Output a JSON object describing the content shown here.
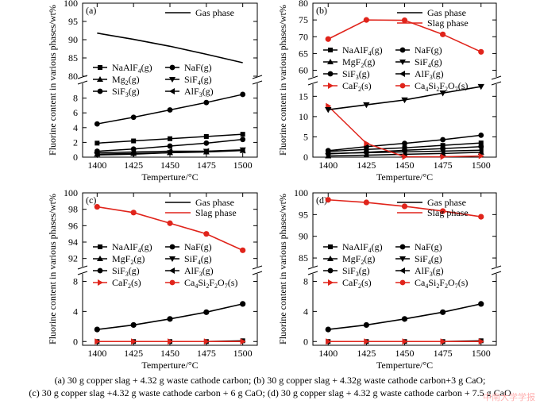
{
  "figure": {
    "ylabel": "Fluorine content in various phases/wt%",
    "xlabel": "Temperture/°C",
    "captions": [
      "(a) 30 g copper slag + 4.32 g waste cathode carbon; (b) 30 g copper slag + 4.32g waste cathode carbon+3 g CaO;",
      "(c) 30 g copper slag +4.32 g waste cathode carbon + 6 g CaO; (d) 30 g copper slag + 4.32 g waste cathode carbon + 7.5 g CaO"
    ],
    "watermark": "中南大学学报"
  },
  "colors": {
    "black": "#000000",
    "red": "#e0241b"
  },
  "chart_data": [
    {
      "panel": "(a)",
      "type": "line",
      "x": [
        1400,
        1425,
        1450,
        1475,
        1500
      ],
      "xticks": [
        "1400",
        "1425",
        "1450",
        "1475",
        "1500"
      ],
      "upper": {
        "ylim": [
          80,
          100
        ],
        "yticks": [
          80,
          85,
          90,
          95,
          100
        ]
      },
      "lower": {
        "ylim": [
          0,
          10
        ],
        "yticks": [
          0,
          2,
          4,
          6,
          8
        ]
      },
      "lines": [
        {
          "name": "Gas phase",
          "color": "#000000",
          "values": [
            91.8,
            90.1,
            88.2,
            86.0,
            83.7
          ]
        }
      ],
      "series": [
        {
          "name": "NaAlF4(g)",
          "marker": "square",
          "color": "#000000",
          "values": [
            1.9,
            2.2,
            2.5,
            2.8,
            3.1
          ]
        },
        {
          "name": "NaF(g)",
          "marker": "circle",
          "color": "#000000",
          "values": [
            0.8,
            1.1,
            1.5,
            1.9,
            2.4
          ]
        },
        {
          "name": "Mg2(g)",
          "marker": "triangle-up",
          "color": "#000000",
          "values": [
            0.4,
            0.5,
            0.6,
            0.7,
            0.9
          ]
        },
        {
          "name": "SiF4(g)",
          "marker": "triangle-down",
          "color": "#000000",
          "values": [
            0.3,
            0.4,
            0.6,
            0.8,
            1.0
          ]
        },
        {
          "name": "SiF3(g)",
          "marker": "circle",
          "color": "#000000",
          "values": [
            4.5,
            5.4,
            6.4,
            7.4,
            8.5
          ]
        },
        {
          "name": "AlF3(g)",
          "marker": "triangle-left",
          "color": "#000000",
          "values": [
            0.6,
            0.7,
            0.8,
            0.8,
            0.9
          ]
        }
      ],
      "legend_top": [
        {
          "name": "Gas phase",
          "color": "#000000"
        }
      ],
      "legend_rows": [
        [
          {
            "text": "NaAlF4(g)",
            "marker": "square"
          },
          {
            "text": "NaF(g)",
            "marker": "circle"
          }
        ],
        [
          {
            "text": "Mg2(g)",
            "marker": "triangle-up"
          },
          {
            "text": "SiF4(g)",
            "marker": "triangle-down"
          }
        ],
        [
          {
            "text": "SiF3(g)",
            "marker": "circle"
          },
          {
            "text": "AlF3(g)",
            "marker": "triangle-left"
          }
        ]
      ]
    },
    {
      "panel": "(b)",
      "type": "line",
      "x": [
        1400,
        1425,
        1450,
        1475,
        1500
      ],
      "xticks": [
        "1400",
        "1425",
        "1450",
        "1475",
        "1500"
      ],
      "upper": {
        "ylim": [
          58,
          80
        ],
        "yticks": [
          60,
          65,
          70,
          75,
          80
        ]
      },
      "lower": {
        "ylim": [
          0,
          18
        ],
        "yticks": [
          0,
          5,
          10,
          15
        ]
      },
      "lines": [
        {
          "name": "Slag phase",
          "color": "#e0241b",
          "band": "upper",
          "marker": "circle",
          "values": [
            69.3,
            75.0,
            74.9,
            70.7,
            65.5
          ]
        },
        {
          "name": "Gas phase",
          "color": "#000000",
          "band": "lower",
          "marker": "triangle-down",
          "values": [
            11.7,
            12.9,
            14.1,
            15.8,
            17.4
          ]
        }
      ],
      "series": [
        {
          "name": "NaAlF4(g)",
          "marker": "square",
          "color": "#000000",
          "values": [
            1.4,
            1.9,
            2.3,
            2.9,
            3.5
          ]
        },
        {
          "name": "NaF(g)",
          "marker": "circle",
          "color": "#000000",
          "values": [
            1.6,
            2.6,
            3.4,
            4.3,
            5.4
          ]
        },
        {
          "name": "MgF2(g)",
          "marker": "triangle-up",
          "color": "#000000",
          "values": [
            0.3,
            0.5,
            0.7,
            0.9,
            1.2
          ]
        },
        {
          "name": "SiF3(g)",
          "marker": "circle",
          "color": "#000000",
          "values": [
            0.8,
            1.2,
            1.7,
            2.1,
            2.6
          ]
        },
        {
          "name": "AlF3(g)",
          "marker": "triangle-left",
          "color": "#000000",
          "values": [
            0.9,
            1.1,
            1.3,
            1.5,
            1.7
          ]
        },
        {
          "name": "CaF2(s)",
          "marker": "triangle-right",
          "color": "#e0241b",
          "values": [
            12.6,
            3.4,
            0.1,
            0.1,
            0.3
          ]
        }
      ],
      "legend_top": [
        {
          "name": "Gas phase",
          "color": "#000000"
        },
        {
          "name": "Slag phase",
          "color": "#e0241b"
        }
      ],
      "legend_rows": [
        [
          {
            "text": "NaAlF4(g)",
            "marker": "square"
          },
          {
            "text": "NaF(g)",
            "marker": "circle"
          }
        ],
        [
          {
            "text": "MgF2(g)",
            "marker": "triangle-up"
          },
          {
            "text": "SiF4(g)",
            "marker": "triangle-down"
          }
        ],
        [
          {
            "text": "SiF3(g)",
            "marker": "circle"
          },
          {
            "text": "AlF3(g)",
            "marker": "triangle-left"
          }
        ],
        [
          {
            "text": "CaF2(s)",
            "marker": "triangle-right",
            "red": true
          },
          {
            "text": "Ca4Si2F2O7(s)",
            "marker": "circle",
            "red": true
          }
        ]
      ]
    },
    {
      "panel": "(c)",
      "type": "line",
      "x": [
        1400,
        1425,
        1450,
        1475,
        1500
      ],
      "xticks": [
        "1400",
        "1425",
        "1450",
        "1475",
        "1500"
      ],
      "upper": {
        "ylim": [
          91,
          100
        ],
        "yticks": [
          92,
          94,
          96,
          98,
          100
        ]
      },
      "lower": {
        "ylim": [
          -0.5,
          9
        ],
        "yticks": [
          0,
          4,
          8
        ]
      },
      "lines": [
        {
          "name": "Slag phase",
          "color": "#e0241b",
          "band": "upper",
          "marker": "circle",
          "values": [
            98.3,
            97.6,
            96.3,
            95.0,
            93.0
          ]
        },
        {
          "name": "Gas phase",
          "color": "#000000",
          "band": "lower",
          "marker": "circle",
          "values": [
            1.6,
            2.2,
            3.0,
            3.9,
            5.0
          ]
        }
      ],
      "series": [
        {
          "name": "NaAlF4(g)",
          "marker": "square",
          "color": "#000000",
          "values": [
            0.0,
            0.0,
            0.0,
            0.0,
            0.1
          ]
        },
        {
          "name": "CaF2(s)",
          "marker": "triangle-right",
          "color": "#e0241b",
          "values": [
            0.0,
            0.0,
            0.0,
            0.0,
            0.0
          ]
        }
      ],
      "legend_top": [
        {
          "name": "Gas phase",
          "color": "#000000"
        },
        {
          "name": "Slag phase",
          "color": "#e0241b"
        }
      ],
      "legend_rows": [
        [
          {
            "text": "NaAlF4(g)",
            "marker": "square"
          },
          {
            "text": "NaF(g)",
            "marker": "circle"
          }
        ],
        [
          {
            "text": "MgF2(g)",
            "marker": "triangle-up"
          },
          {
            "text": "SiF4(g)",
            "marker": "triangle-down"
          }
        ],
        [
          {
            "text": "SiF3(g)",
            "marker": "circle"
          },
          {
            "text": "AlF3(g)",
            "marker": "triangle-left"
          }
        ],
        [
          {
            "text": "CaF2(s)",
            "marker": "triangle-right",
            "red": true
          },
          {
            "text": "Ca4Si2F2O7(s)",
            "marker": "circle",
            "red": true
          }
        ]
      ]
    },
    {
      "panel": "(d)",
      "type": "line",
      "x": [
        1400,
        1425,
        1450,
        1475,
        1500
      ],
      "xticks": [
        "1400",
        "1425",
        "1450",
        "1475",
        "1500"
      ],
      "upper": {
        "ylim": [
          83,
          100
        ],
        "yticks": [
          85,
          90,
          95,
          100
        ]
      },
      "lower": {
        "ylim": [
          -0.5,
          9
        ],
        "yticks": [
          0,
          4,
          8
        ]
      },
      "lines": [
        {
          "name": "Slag phase",
          "color": "#e0241b",
          "band": "upper",
          "marker": "circle",
          "values": [
            98.4,
            97.8,
            96.9,
            95.8,
            94.5
          ]
        },
        {
          "name": "Gas phase",
          "color": "#000000",
          "band": "lower",
          "marker": "circle",
          "values": [
            1.6,
            2.2,
            3.0,
            3.9,
            5.0
          ]
        }
      ],
      "series": [
        {
          "name": "NaAlF4(g)",
          "marker": "square",
          "color": "#000000",
          "values": [
            0.0,
            0.0,
            0.0,
            0.0,
            0.1
          ]
        },
        {
          "name": "CaF2(s)",
          "marker": "triangle-right",
          "color": "#e0241b",
          "values": [
            0.0,
            0.0,
            0.0,
            0.0,
            0.0
          ]
        }
      ],
      "legend_top": [
        {
          "name": "Gas phase",
          "color": "#000000"
        },
        {
          "name": "Slag phase",
          "color": "#e0241b"
        }
      ],
      "legend_rows": [
        [
          {
            "text": "NaAlF4(g)",
            "marker": "square"
          },
          {
            "text": "NaF(g)",
            "marker": "circle"
          }
        ],
        [
          {
            "text": "MgF2(g)",
            "marker": "triangle-up"
          },
          {
            "text": "SiF4(g)",
            "marker": "triangle-down"
          }
        ],
        [
          {
            "text": "SiF3(g)",
            "marker": "circle"
          },
          {
            "text": "AlF3(g)",
            "marker": "triangle-left"
          }
        ],
        [
          {
            "text": "CaF2(s)",
            "marker": "triangle-right",
            "red": true
          },
          {
            "text": "Ca4Si2F2O7(s)",
            "marker": "circle",
            "red": true
          }
        ]
      ]
    }
  ]
}
